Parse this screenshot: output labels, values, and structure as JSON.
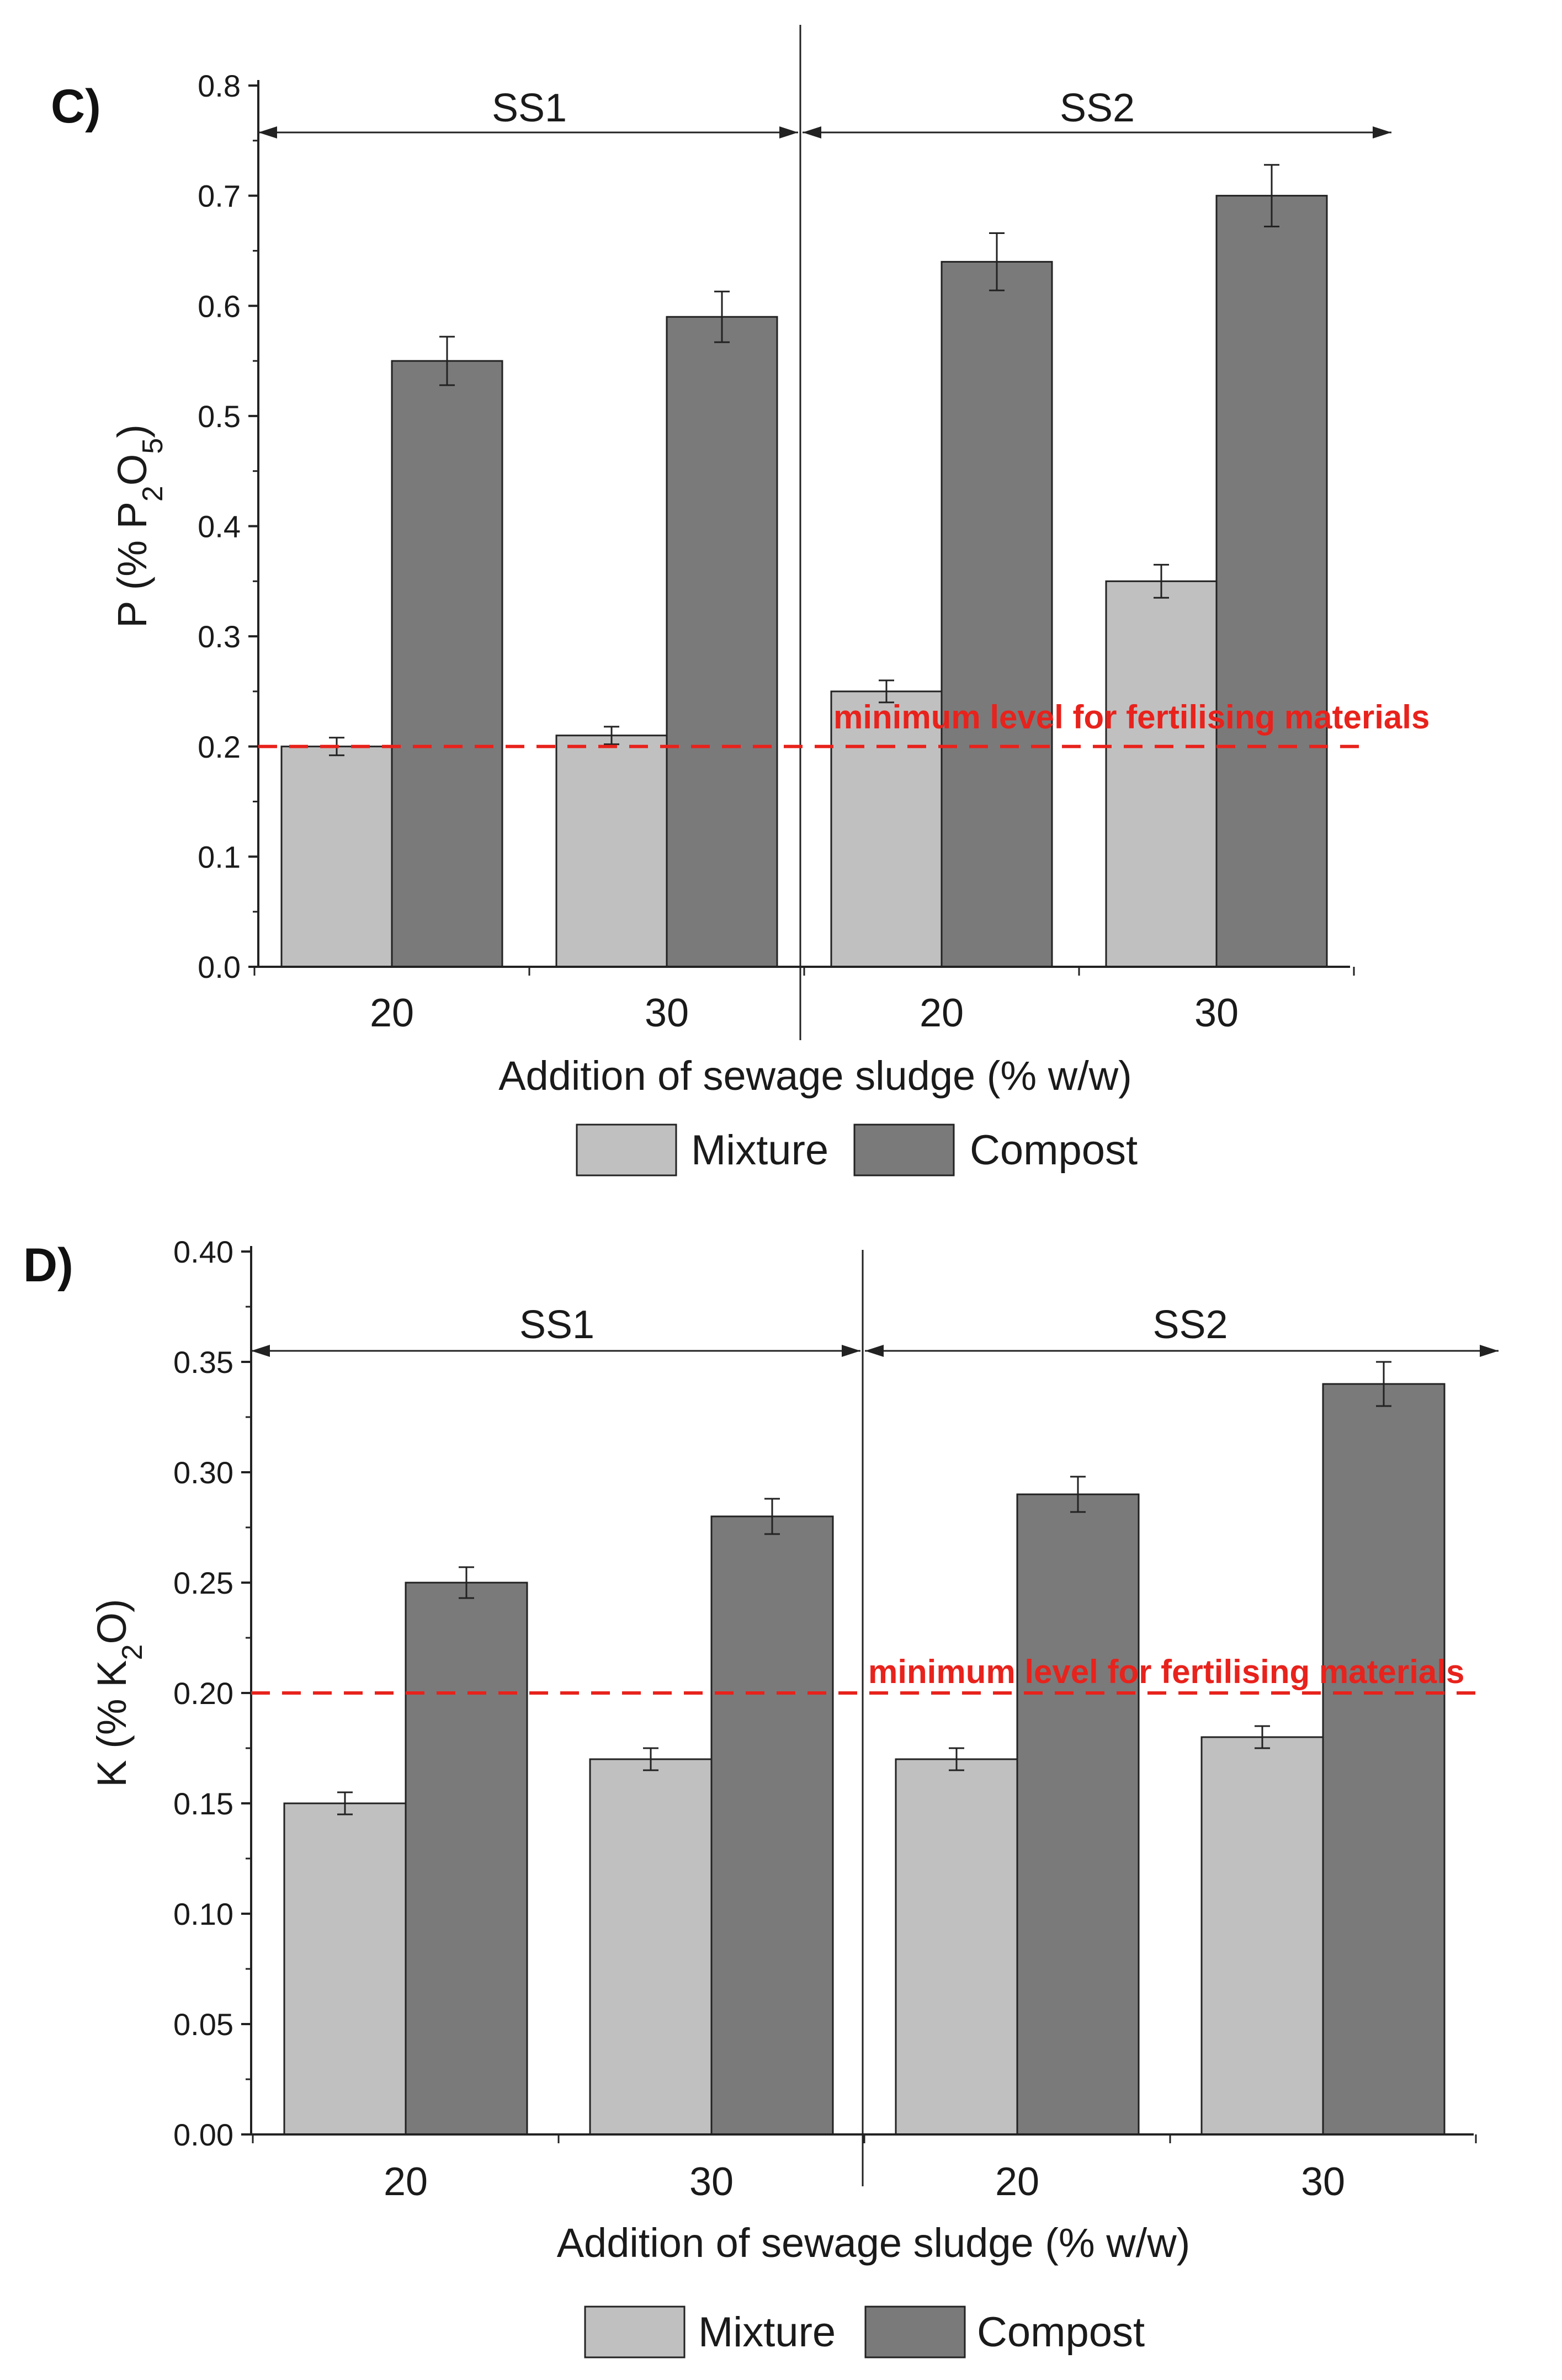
{
  "chart_data": [
    {
      "type": "bar",
      "panel": "C)",
      "ylabel": {
        "prefix": "P (% P",
        "sub1": "2",
        "mid": "O",
        "sub2": "5",
        "suffix": ")"
      },
      "xlabel": "Addition of sewage sludge (% w/w)",
      "ylim": [
        0,
        0.8
      ],
      "yticks": [
        "0.0",
        "0.1",
        "0.2",
        "0.3",
        "0.4",
        "0.5",
        "0.6",
        "0.7",
        "0.8"
      ],
      "yticks_values": [
        0,
        0.1,
        0.2,
        0.3,
        0.4,
        0.5,
        0.6,
        0.7,
        0.8
      ],
      "categories": [
        "20",
        "30",
        "20",
        "30"
      ],
      "groups": [
        "SS1",
        "SS2"
      ],
      "series": [
        {
          "name": "Mixture",
          "color": "#c0c0c0",
          "values": [
            0.2,
            0.21,
            0.25,
            0.35
          ],
          "errors": [
            0.008,
            0.008,
            0.01,
            0.015
          ]
        },
        {
          "name": "Compost",
          "color": "#7a7a7a",
          "values": [
            0.55,
            0.59,
            0.64,
            0.7
          ],
          "errors": [
            0.022,
            0.023,
            0.026,
            0.028
          ]
        }
      ],
      "reference_line": {
        "value": 0.2,
        "label": "minimum level for fertilising materials",
        "color": "#e8221c"
      }
    },
    {
      "type": "bar",
      "panel": "D)",
      "ylabel": {
        "prefix": "K (% K",
        "sub1": "2",
        "mid": "O",
        "sub2": "",
        "suffix": ")"
      },
      "xlabel": "Addition of sewage sludge (% w/w)",
      "ylim": [
        0,
        0.4
      ],
      "yticks": [
        "0.00",
        "0.05",
        "0.10",
        "0.15",
        "0.20",
        "0.25",
        "0.30",
        "0.35",
        "0.40"
      ],
      "yticks_values": [
        0,
        0.05,
        0.1,
        0.15,
        0.2,
        0.25,
        0.3,
        0.35,
        0.4
      ],
      "categories": [
        "20",
        "30",
        "20",
        "30"
      ],
      "groups": [
        "SS1",
        "SS2"
      ],
      "series": [
        {
          "name": "Mixture",
          "color": "#c0c0c0",
          "values": [
            0.15,
            0.17,
            0.17,
            0.18
          ],
          "errors": [
            0.005,
            0.005,
            0.005,
            0.005
          ]
        },
        {
          "name": "Compost",
          "color": "#7a7a7a",
          "values": [
            0.25,
            0.28,
            0.29,
            0.34
          ],
          "errors": [
            0.007,
            0.008,
            0.008,
            0.01
          ]
        }
      ],
      "reference_line": {
        "value": 0.2,
        "label": "minimum level for fertilising materials",
        "color": "#e8221c"
      }
    }
  ]
}
